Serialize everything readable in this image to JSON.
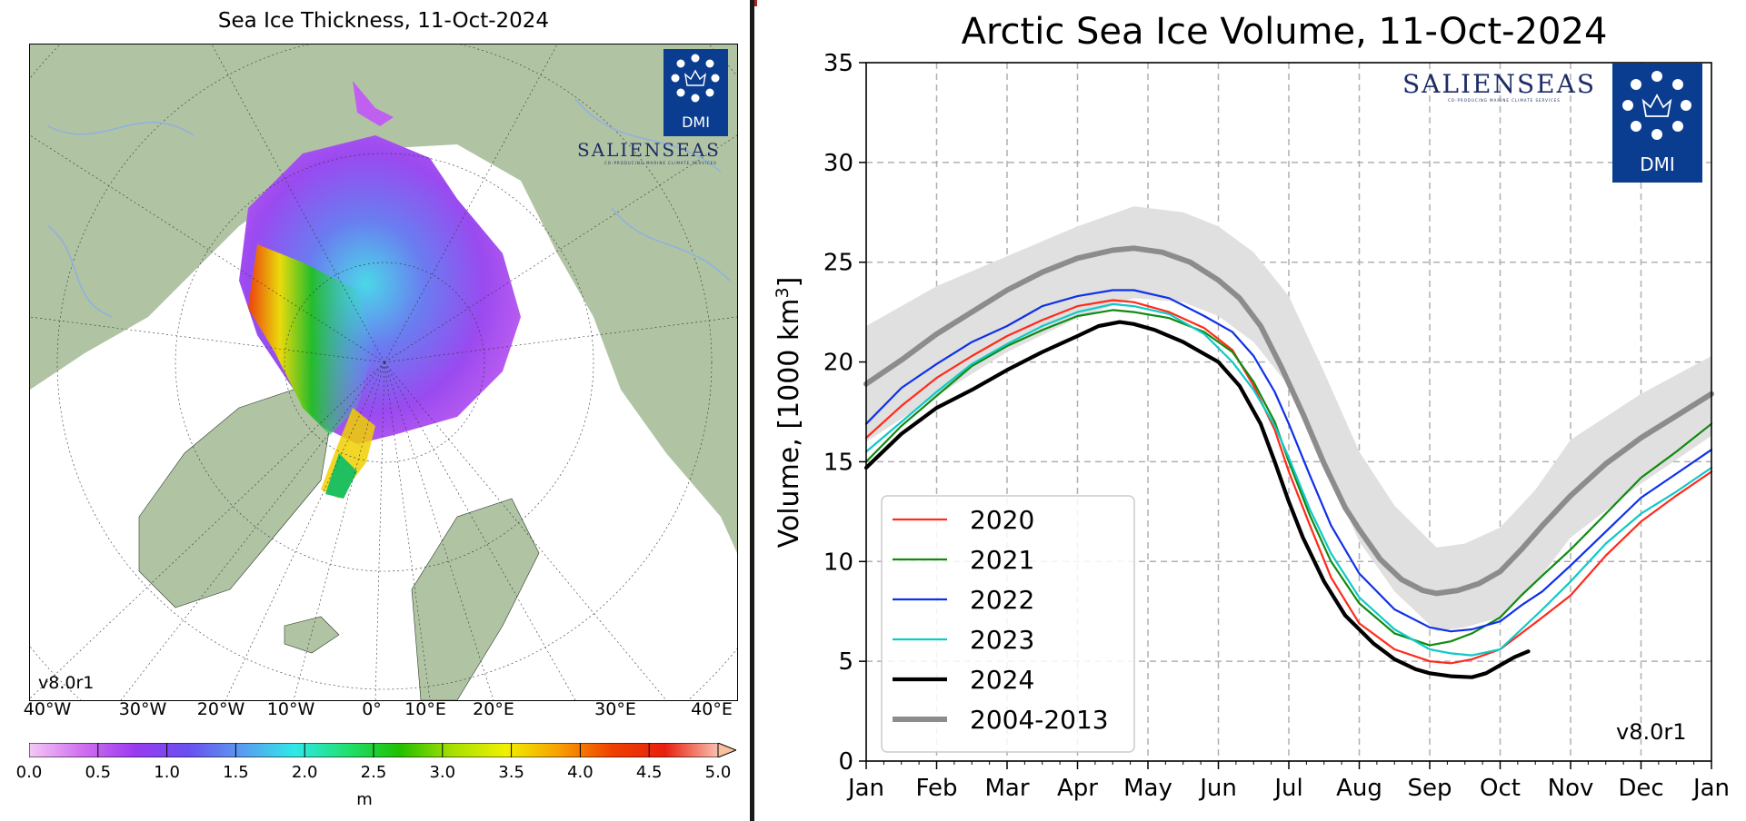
{
  "left_map": {
    "title": "Sea Ice Thickness, 11-Oct-2024",
    "version": "v8.0r1",
    "lon_labels": [
      "40°W",
      "30°W",
      "20°W",
      "10°W",
      "0°",
      "10°E",
      "20°E",
      "30°E",
      "40°E"
    ],
    "colorbar": {
      "ticks": [
        "0.0",
        "0.5",
        "1.0",
        "1.5",
        "2.0",
        "2.5",
        "3.0",
        "3.5",
        "4.0",
        "4.5",
        "5.0"
      ],
      "unit": "m",
      "colors": [
        "#f5c8f5",
        "#d070f0",
        "#9a3af0",
        "#6a50f0",
        "#5a9af0",
        "#30e8e8",
        "#20e070",
        "#20c000",
        "#a8e000",
        "#f0f000",
        "#f8a000",
        "#f04000",
        "#e82010",
        "#f8c0b0"
      ]
    },
    "logos": {
      "dmi": "DMI",
      "salienseas": "SALIENSEAS",
      "salienseas_sub": "CO-PRODUCING MARINE CLIMATE SERVICES"
    }
  },
  "chart_data": {
    "type": "line",
    "title": "Arctic Sea Ice Volume, 11-Oct-2024",
    "ylabel": "Volume, [1000 km",
    "ylabel_sup": "3",
    "ylabel_suffix": "]",
    "ylim": [
      0,
      35
    ],
    "yticks": [
      0,
      5,
      10,
      15,
      20,
      25,
      30,
      35
    ],
    "xlim": [
      0,
      12
    ],
    "xtick_labels": [
      "Jan",
      "Feb",
      "Mar",
      "Apr",
      "May",
      "Jun",
      "Jul",
      "Aug",
      "Sep",
      "Oct",
      "Nov",
      "Dec",
      "Jan"
    ],
    "grid": true,
    "legend_position": "lower-left",
    "version": "v8.0r1",
    "band": {
      "name": "2004-2013 range",
      "x": [
        0,
        1,
        2,
        3,
        3.8,
        4.5,
        5,
        5.5,
        6,
        6.5,
        7,
        7.5,
        8.1,
        8.5,
        9,
        9.5,
        10,
        11,
        12
      ],
      "upper": [
        21.8,
        23.8,
        25.3,
        26.8,
        27.8,
        27.5,
        26.8,
        25.5,
        23.3,
        19.5,
        15.5,
        12.8,
        10.7,
        10.9,
        11.7,
        13.6,
        16.1,
        18.4,
        20.3
      ],
      "lower": [
        16.0,
        18.3,
        20.5,
        22.2,
        23.2,
        23.0,
        22.3,
        21.0,
        18.8,
        15.0,
        11.0,
        8.5,
        6.5,
        6.7,
        7.2,
        8.9,
        11.2,
        13.9,
        16.3
      ]
    },
    "series": [
      {
        "name": "2020",
        "color": "#ff2a1a",
        "width": 2.2,
        "x": [
          0,
          0.5,
          1,
          1.5,
          2,
          2.5,
          3,
          3.5,
          3.8,
          4.3,
          4.8,
          5.2,
          5.5,
          5.8,
          6,
          6.3,
          6.6,
          7,
          7.5,
          8,
          8.3,
          8.6,
          9,
          9.3,
          9.6,
          10,
          10.5,
          11,
          11.5,
          12
        ],
        "y": [
          16.2,
          17.8,
          19.2,
          20.3,
          21.3,
          22.1,
          22.8,
          23.1,
          23.0,
          22.5,
          21.7,
          20.6,
          18.8,
          16.6,
          14.5,
          11.8,
          9.2,
          6.9,
          5.6,
          5.0,
          4.9,
          5.1,
          5.6,
          6.4,
          7.2,
          8.3,
          10.3,
          12.0,
          13.3,
          14.5
        ]
      },
      {
        "name": "2021",
        "color": "#108a10",
        "width": 2.2,
        "x": [
          0,
          0.5,
          1,
          1.5,
          2,
          2.5,
          3,
          3.5,
          3.8,
          4.3,
          4.8,
          5.2,
          5.5,
          5.8,
          6,
          6.3,
          6.6,
          7,
          7.5,
          8,
          8.3,
          8.6,
          9,
          9.3,
          9.6,
          10,
          10.5,
          11,
          11.5,
          12
        ],
        "y": [
          15.0,
          16.8,
          18.3,
          19.8,
          20.8,
          21.6,
          22.3,
          22.6,
          22.5,
          22.2,
          21.5,
          20.5,
          19.0,
          17.0,
          15.0,
          12.3,
          10.0,
          7.9,
          6.4,
          5.8,
          6.0,
          6.4,
          7.2,
          8.3,
          9.3,
          10.6,
          12.4,
          14.2,
          15.5,
          16.9
        ]
      },
      {
        "name": "2022",
        "color": "#1030e8",
        "width": 2.2,
        "x": [
          0,
          0.5,
          1,
          1.5,
          2,
          2.5,
          3,
          3.5,
          3.8,
          4.3,
          4.8,
          5.2,
          5.5,
          5.8,
          6,
          6.3,
          6.6,
          7,
          7.5,
          8,
          8.3,
          8.6,
          9,
          9.3,
          9.6,
          10,
          10.5,
          11,
          11.5,
          12
        ],
        "y": [
          16.9,
          18.7,
          19.9,
          21.0,
          21.8,
          22.8,
          23.3,
          23.6,
          23.6,
          23.2,
          22.3,
          21.5,
          20.3,
          18.5,
          16.9,
          14.3,
          11.8,
          9.4,
          7.6,
          6.7,
          6.5,
          6.6,
          7.0,
          7.8,
          8.5,
          9.8,
          11.5,
          13.2,
          14.4,
          15.6
        ]
      },
      {
        "name": "2023",
        "color": "#10c8c8",
        "width": 2.2,
        "x": [
          0,
          0.5,
          1,
          1.5,
          2,
          2.5,
          3,
          3.5,
          3.8,
          4.3,
          4.8,
          5.2,
          5.5,
          5.8,
          6,
          6.3,
          6.6,
          7,
          7.5,
          8,
          8.3,
          8.6,
          9,
          9.3,
          9.6,
          10,
          10.5,
          11,
          11.5,
          12
        ],
        "y": [
          15.5,
          17.0,
          18.5,
          19.9,
          20.9,
          21.8,
          22.5,
          22.9,
          22.8,
          22.4,
          21.4,
          20.0,
          18.6,
          16.8,
          15.2,
          12.6,
          10.4,
          8.2,
          6.6,
          5.6,
          5.4,
          5.3,
          5.6,
          6.6,
          7.6,
          9.0,
          10.9,
          12.4,
          13.5,
          14.7
        ]
      },
      {
        "name": "2024",
        "color": "#000000",
        "width": 4.2,
        "x": [
          0,
          0.5,
          1,
          1.5,
          2,
          2.5,
          3,
          3.3,
          3.6,
          3.8,
          4.1,
          4.5,
          5,
          5.3,
          5.6,
          5.8,
          6,
          6.2,
          6.5,
          6.8,
          7.2,
          7.5,
          7.8,
          8,
          8.3,
          8.6,
          8.8,
          9,
          9.2,
          9.4
        ],
        "y": [
          14.7,
          16.4,
          17.7,
          18.6,
          19.6,
          20.5,
          21.3,
          21.8,
          22.0,
          21.9,
          21.6,
          21.0,
          20.0,
          18.8,
          16.9,
          15.0,
          13.0,
          11.2,
          9.0,
          7.3,
          5.9,
          5.1,
          4.6,
          4.4,
          4.25,
          4.2,
          4.4,
          4.8,
          5.2,
          5.5
        ]
      },
      {
        "name": "2004-2013",
        "color": "#8c8c8c",
        "width": 6,
        "x": [
          0,
          0.5,
          1,
          1.5,
          2,
          2.5,
          3,
          3.5,
          3.8,
          4.2,
          4.6,
          5,
          5.3,
          5.6,
          5.9,
          6.2,
          6.5,
          6.8,
          7,
          7.3,
          7.6,
          7.9,
          8.1,
          8.4,
          8.7,
          9,
          9.3,
          9.6,
          10,
          10.5,
          11,
          11.5,
          12
        ],
        "y": [
          18.9,
          20.1,
          21.4,
          22.5,
          23.6,
          24.5,
          25.2,
          25.6,
          25.7,
          25.5,
          25.0,
          24.1,
          23.2,
          21.8,
          19.7,
          17.4,
          14.9,
          12.7,
          11.6,
          10.1,
          9.1,
          8.55,
          8.4,
          8.55,
          8.9,
          9.5,
          10.6,
          11.8,
          13.3,
          14.9,
          16.2,
          17.3,
          18.4
        ]
      }
    ],
    "band_color": "#e0e0e0",
    "logos": {
      "dmi": "DMI",
      "salienseas": "SALIENSEAS",
      "salienseas_sub": "CO-PRODUCING MARINE CLIMATE SERVICES"
    }
  }
}
